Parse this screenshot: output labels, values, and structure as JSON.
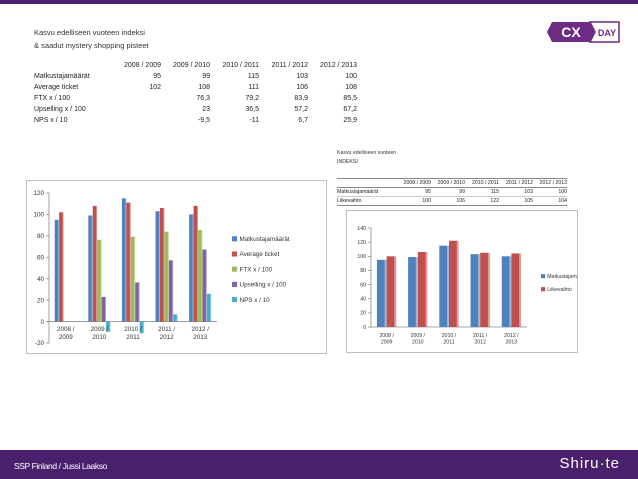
{
  "slide": {
    "title_line1": "Kasvu edelliseen vuoteen indeksi",
    "title_line2": "& saadut mystery shopping pisteet",
    "footer_left": "SSP Finland / Jussi Laakso",
    "footer_brand": "Shiru·te"
  },
  "logo": {
    "mark": "CX",
    "word": "DAY",
    "color": "#6d2b86"
  },
  "table1": {
    "headers": [
      "",
      "2008 / 2009",
      "2009 / 2010",
      "2010 / 2011",
      "2011 / 2012",
      "2012 / 2013"
    ],
    "rows": [
      [
        "Matkustajamäärät",
        "95",
        "99",
        "115",
        "103",
        "100"
      ],
      [
        "Average ticket",
        "102",
        "108",
        "111",
        "106",
        "108"
      ],
      [
        "FTX x / 100",
        "",
        "76,3",
        "79,2",
        "83,9",
        "85,5"
      ],
      [
        "Upselling x / 100",
        "",
        "23",
        "36,5",
        "57,2",
        "67,2"
      ],
      [
        "NPS x / 10",
        "",
        "-9,5",
        "-11",
        "6,7",
        "25,9"
      ]
    ]
  },
  "table2": {
    "title_line1": "Kasvu edelliseen vuoteen",
    "title_line2": "INDEKSI",
    "headers": [
      "",
      "2008 / 2009",
      "2009 / 2010",
      "2010 / 2011",
      "2011 / 2012",
      "2012 / 2013"
    ],
    "rows": [
      [
        "Matkustajamäärät",
        "95",
        "99",
        "115",
        "103",
        "100"
      ],
      [
        "Liikevaihto",
        "100",
        "106",
        "122",
        "105",
        "104"
      ]
    ]
  },
  "chart_data": [
    {
      "type": "bar",
      "title": "",
      "categories": [
        "2008 / 2009",
        "2009 / 2010",
        "2010 / 2011",
        "2011 / 2012",
        "2012 / 2013"
      ],
      "series": [
        {
          "name": "Matkustajamäärät",
          "color": "#4f81bd",
          "values": [
            95,
            99,
            115,
            103,
            100
          ]
        },
        {
          "name": "Average ticket",
          "color": "#c0504d",
          "values": [
            102,
            108,
            111,
            106,
            108
          ]
        },
        {
          "name": "FTX x / 100",
          "color": "#9bbb59",
          "values": [
            null,
            76.3,
            79.2,
            83.9,
            85.5
          ]
        },
        {
          "name": "Upselling x / 100",
          "color": "#8064a2",
          "values": [
            null,
            23,
            36.5,
            57.2,
            67.2
          ]
        },
        {
          "name": "NPS x / 10",
          "color": "#4bacc6",
          "values": [
            null,
            -9.5,
            -11,
            6.7,
            25.9
          ]
        }
      ],
      "ylim": [
        -20,
        120
      ],
      "yticks": [
        -20,
        0,
        20,
        40,
        60,
        80,
        100,
        120
      ],
      "grid": false,
      "legend": "right"
    },
    {
      "type": "bar",
      "title": "",
      "categories": [
        "2008 / 2009",
        "2009 / 2010",
        "2010 / 2011",
        "2011 / 2012",
        "2012 / 2013"
      ],
      "series": [
        {
          "name": "Matkustajamäärät",
          "color": "#4f81bd",
          "values": [
            95,
            99,
            115,
            103,
            100
          ]
        },
        {
          "name": "Liikevaihto",
          "color": "#c0504d",
          "values": [
            100,
            106,
            122,
            105,
            104
          ]
        }
      ],
      "ylim": [
        0,
        140
      ],
      "yticks": [
        0,
        20,
        40,
        60,
        80,
        100,
        120,
        140
      ],
      "grid": false,
      "legend": "right"
    }
  ]
}
